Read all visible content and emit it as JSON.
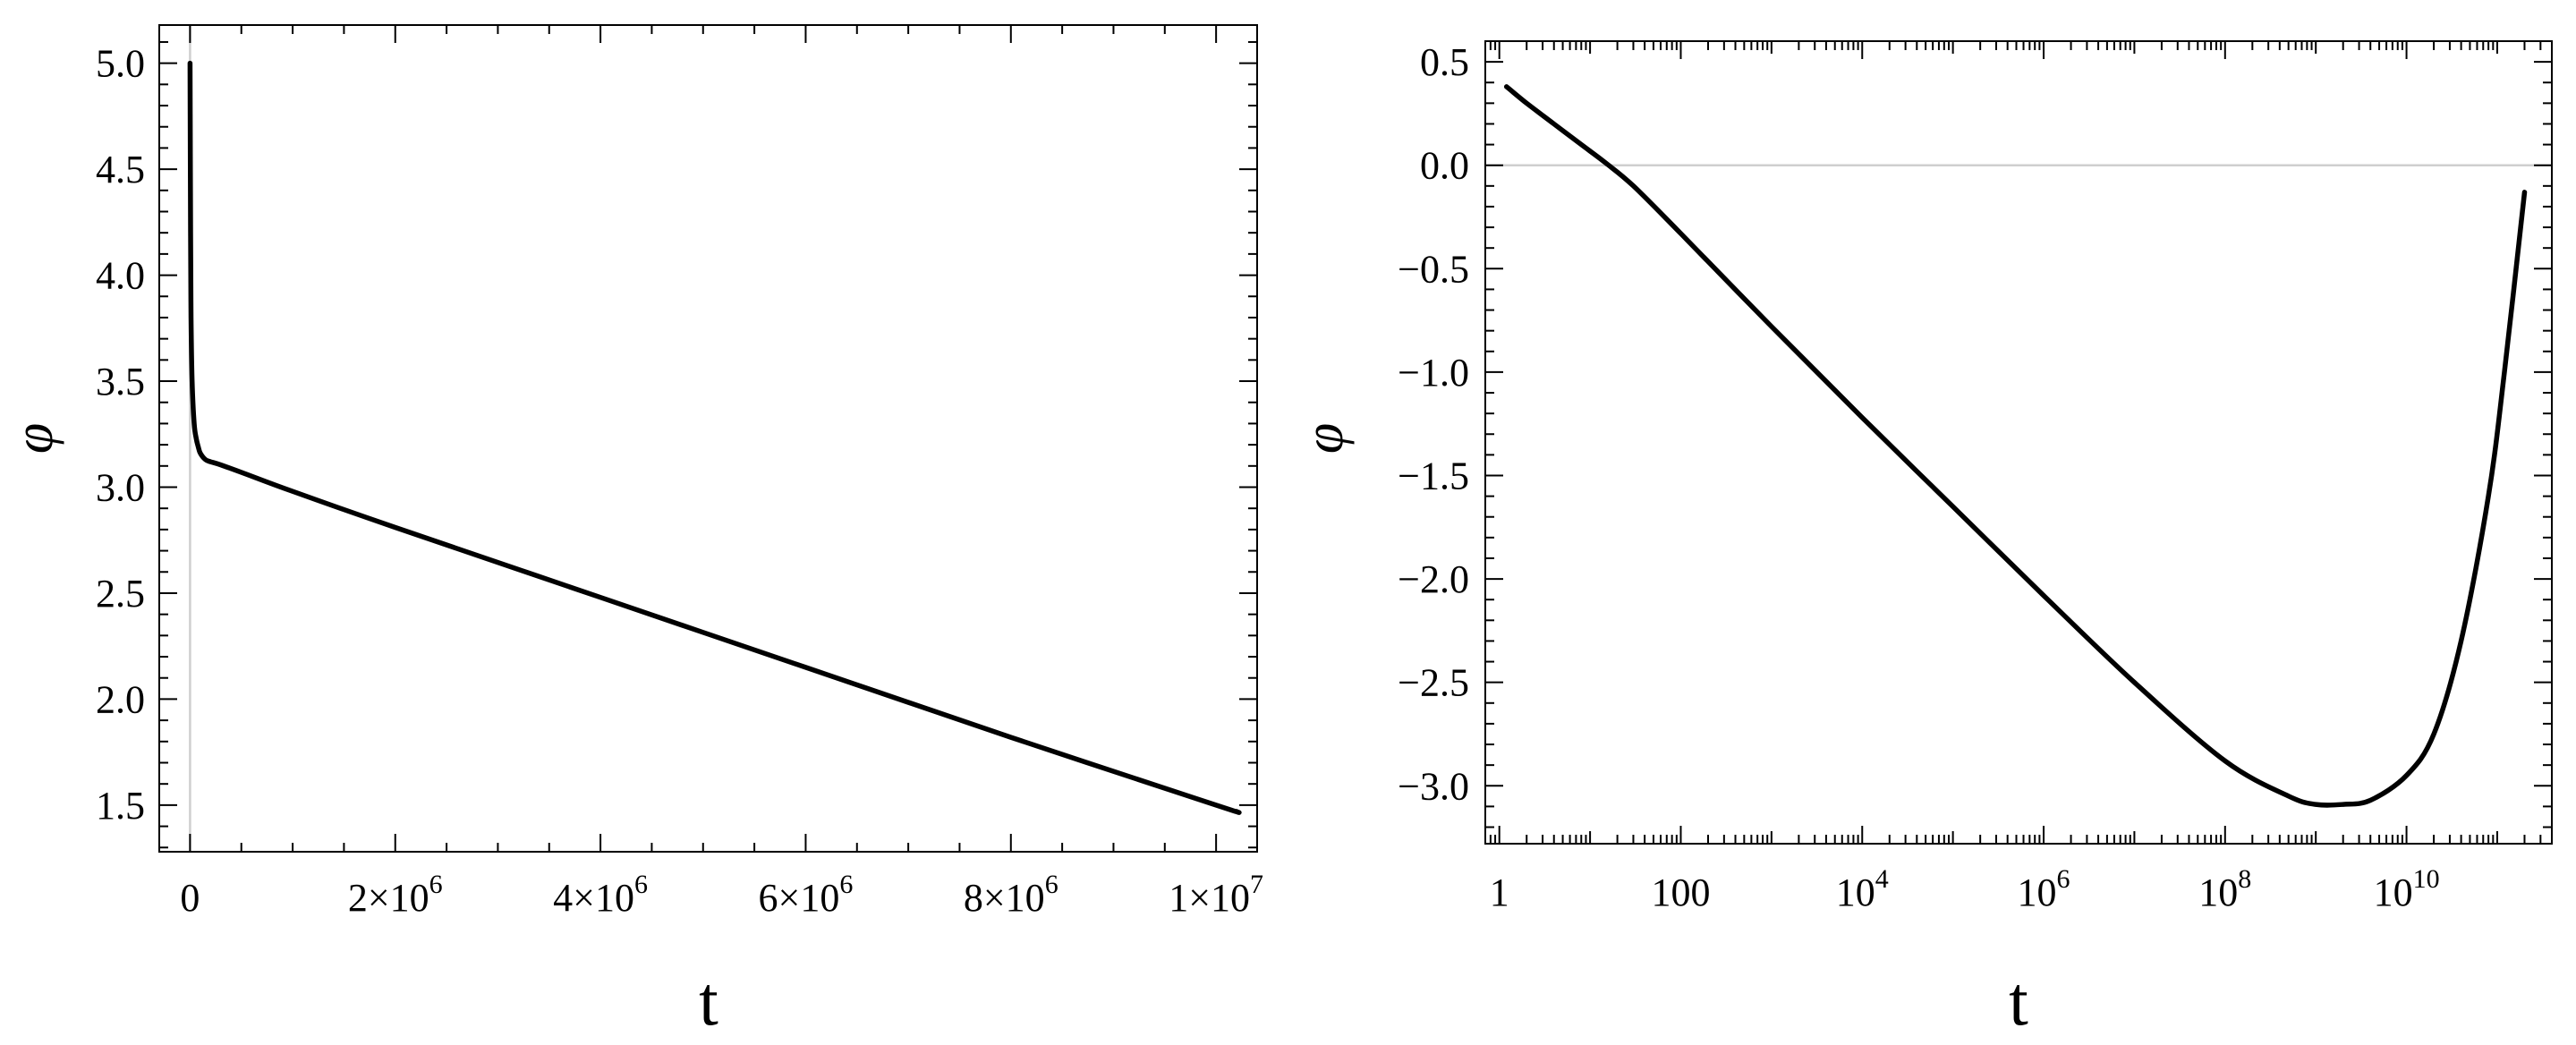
{
  "chart_data": [
    {
      "type": "line",
      "title": "",
      "xlabel": "t",
      "ylabel": "φ",
      "xscale": "linear",
      "xlim": [
        -300000,
        10400000
      ],
      "ylim": [
        1.28,
        5.18
      ],
      "grid": false,
      "legend": "none",
      "line_color": "#000000",
      "x_ticks": [
        {
          "value": 0,
          "label": "0"
        },
        {
          "value": 2000000,
          "label": "2×10^6"
        },
        {
          "value": 4000000,
          "label": "4×10^6"
        },
        {
          "value": 6000000,
          "label": "6×10^6"
        },
        {
          "value": 8000000,
          "label": "8×10^6"
        },
        {
          "value": 10000000,
          "label": "1×10^7"
        }
      ],
      "y_ticks": [
        "1.5",
        "2.0",
        "2.5",
        "3.0",
        "3.5",
        "4.0",
        "4.5",
        "5.0"
      ],
      "series": [
        {
          "x": [
            0,
            5000,
            10000,
            20000,
            40000,
            60000,
            80000,
            100000,
            150000,
            200000,
            300000,
            500000,
            1000000,
            2000000,
            4000000,
            6000000,
            8000000,
            10000000,
            10200000
          ],
          "y": [
            5.0,
            4.2,
            3.8,
            3.5,
            3.3,
            3.23,
            3.19,
            3.16,
            3.13,
            3.12,
            3.105,
            3.07,
            2.98,
            2.81,
            2.48,
            2.15,
            1.82,
            1.5,
            1.47
          ]
        }
      ]
    },
    {
      "type": "line",
      "title": "",
      "xlabel": "t",
      "ylabel": "φ",
      "xscale": "log",
      "xlim": [
        0.7,
        400000000000.0
      ],
      "ylim": [
        -3.28,
        0.6
      ],
      "grid": false,
      "legend": "none",
      "line_color": "#000000",
      "reference_line_y": 0,
      "reference_line_color": "#cfcfcf",
      "x_ticks": [
        {
          "value": 1,
          "label": "1"
        },
        {
          "value": 100,
          "label": "100"
        },
        {
          "value": 10000,
          "label": "10^4"
        },
        {
          "value": 1000000,
          "label": "10^6"
        },
        {
          "value": 100000000,
          "label": "10^8"
        },
        {
          "value": 10000000000,
          "label": "10^10"
        }
      ],
      "y_ticks": [
        "0.5",
        "0.0",
        "−0.5",
        "−1.0",
        "−1.5",
        "−2.0",
        "−2.5",
        "−3.0"
      ],
      "series": [
        {
          "x": [
            1.2,
            2,
            4,
            8,
            15,
            30,
            100,
            1000,
            10000,
            100000,
            1000000,
            10000000,
            100000000,
            500000000,
            1000000000,
            2000000000,
            4000000000,
            10000000000,
            20000000000,
            40000000000,
            80000000000,
            120000000000,
            200000000000
          ],
          "y": [
            0.38,
            0.3,
            0.2,
            0.1,
            0.01,
            -0.1,
            -0.33,
            -0.78,
            -1.22,
            -1.65,
            -2.08,
            -2.5,
            -2.88,
            -3.05,
            -3.09,
            -3.09,
            -3.07,
            -2.95,
            -2.75,
            -2.3,
            -1.6,
            -1.0,
            -0.13
          ]
        }
      ]
    }
  ]
}
